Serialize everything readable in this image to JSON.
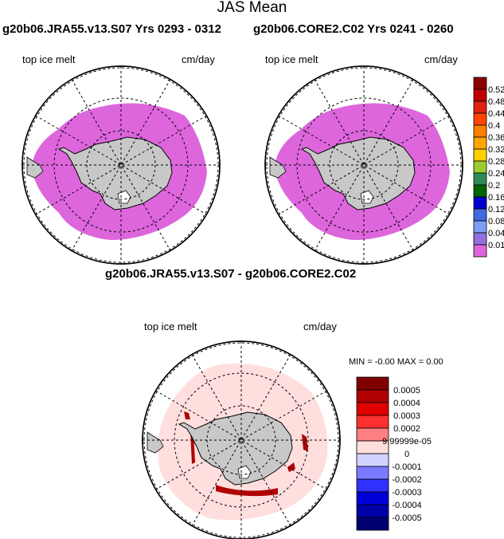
{
  "title": "JAS Mean",
  "panel_left": {
    "title": "g20b06.JRA55.v13.S07  Yrs 0293 - 0312",
    "field": "top ice melt",
    "units": "cm/day"
  },
  "panel_right": {
    "title": "g20b06.CORE2.C02  Yrs 0241 - 0260",
    "field": "top ice melt",
    "units": "cm/day"
  },
  "panel_diff": {
    "title": "g20b06.JRA55.v13.S07 - g20b06.CORE2.C02",
    "field": "top ice melt",
    "units": "cm/day",
    "stats": "MIN =  -0.00 MAX =   0.00"
  },
  "colorbar_top": {
    "labels": [
      "0.52",
      "0.48",
      "0.44",
      "0.4",
      "0.36",
      "0.32",
      "0.28",
      "0.24",
      "0.2",
      "0.16",
      "0.12",
      "0.08",
      "0.04",
      "0.01"
    ],
    "colors": [
      "#8b0000",
      "#c00000",
      "#e02010",
      "#ff4500",
      "#ff7f00",
      "#ffa500",
      "#ffd000",
      "#9acd32",
      "#2e8b57",
      "#006400",
      "#0000cd",
      "#4169e1",
      "#7b9ff5",
      "#9370db",
      "#dd66dd"
    ]
  },
  "colorbar_diff": {
    "labels": [
      "0.0005",
      "0.0004",
      "0.0003",
      "0.0002",
      "9.99999e-05",
      "0",
      "-0.0001",
      "-0.0002",
      "-0.0003",
      "-0.0004",
      "-0.0005"
    ],
    "colors": [
      "#800000",
      "#b00000",
      "#e00000",
      "#ff3030",
      "#ff8080",
      "#ffdede",
      "#d2d2ff",
      "#7a7aff",
      "#3030ff",
      "#0000d8",
      "#0000a8",
      "#000070"
    ]
  },
  "colors": {
    "sea_ice": "#dd66dd",
    "land": "#c8c8c8",
    "diff_background": "#ffdede",
    "diff_strong": "#b00000"
  }
}
